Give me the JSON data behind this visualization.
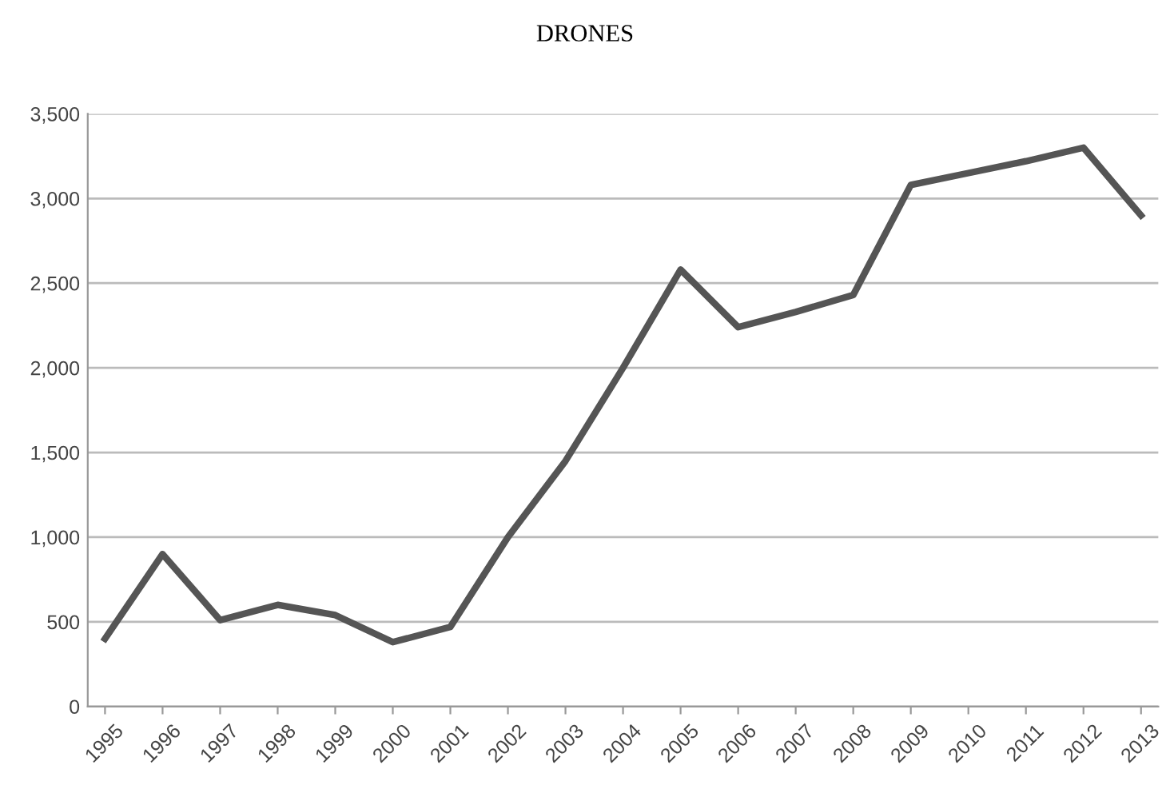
{
  "chart_data": {
    "type": "line",
    "title": "DRONES",
    "categories": [
      "1995",
      "1996",
      "1997",
      "1998",
      "1999",
      "2000",
      "2001",
      "2002",
      "2003",
      "2004",
      "2005",
      "2006",
      "2007",
      "2008",
      "2009",
      "2010",
      "2011",
      "2012",
      "2013"
    ],
    "series": [
      {
        "color": "#555555",
        "values": [
          400,
          900,
          510,
          600,
          540,
          380,
          470,
          1000,
          1450,
          2000,
          2580,
          2240,
          2330,
          2430,
          3080,
          3150,
          3220,
          3300,
          2900
        ]
      }
    ],
    "ylim": [
      0,
      3500
    ],
    "yticks": [
      {
        "value": 0,
        "label": "0"
      },
      {
        "value": 500,
        "label": "500"
      },
      {
        "value": 1000,
        "label": "1,000"
      },
      {
        "value": 1500,
        "label": "1,500"
      },
      {
        "value": 2000,
        "label": "2,000"
      },
      {
        "value": 2500,
        "label": "2,500"
      },
      {
        "value": 3000,
        "label": "3,000"
      },
      {
        "value": 3500,
        "label": "3,500"
      }
    ],
    "grid": "y",
    "legend": false,
    "marker": "none",
    "line_style": "solid"
  }
}
